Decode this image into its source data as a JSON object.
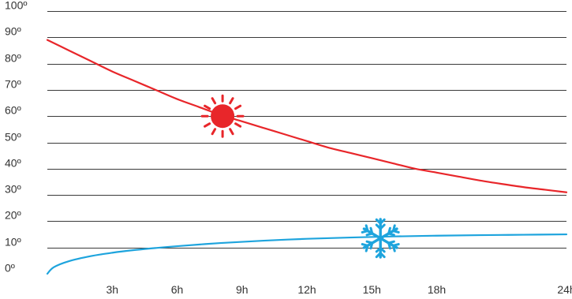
{
  "chart_data": {
    "type": "line",
    "title": "",
    "xlabel": "",
    "ylabel": "",
    "xlim": [
      0,
      24
    ],
    "ylim": [
      0,
      100
    ],
    "grid": true,
    "y_ticks": [
      {
        "value": 0,
        "label": "0º"
      },
      {
        "value": 10,
        "label": "10º"
      },
      {
        "value": 20,
        "label": "20º"
      },
      {
        "value": 30,
        "label": "30º"
      },
      {
        "value": 40,
        "label": "40º"
      },
      {
        "value": 50,
        "label": "50º"
      },
      {
        "value": 60,
        "label": "60º"
      },
      {
        "value": 70,
        "label": "70º"
      },
      {
        "value": 80,
        "label": "80º"
      },
      {
        "value": 90,
        "label": "90º"
      },
      {
        "value": 100,
        "label": "100º"
      }
    ],
    "x_ticks": [
      {
        "value": 3,
        "label": "3h"
      },
      {
        "value": 6,
        "label": "6h"
      },
      {
        "value": 9,
        "label": "9h"
      },
      {
        "value": 12,
        "label": "12h"
      },
      {
        "value": 15,
        "label": "15h"
      },
      {
        "value": 18,
        "label": "18h"
      },
      {
        "value": 24,
        "label": "24h"
      }
    ],
    "series": [
      {
        "color": "#e8262a",
        "icon": "sun-icon",
        "icon_at": {
          "x": 8.1,
          "y": 60
        },
        "points": [
          {
            "x": 0,
            "y": 89
          },
          {
            "x": 1,
            "y": 85
          },
          {
            "x": 2,
            "y": 81
          },
          {
            "x": 3,
            "y": 77
          },
          {
            "x": 4,
            "y": 73.5
          },
          {
            "x": 5,
            "y": 70
          },
          {
            "x": 6,
            "y": 66.5
          },
          {
            "x": 7,
            "y": 63.5
          },
          {
            "x": 8,
            "y": 60.5
          },
          {
            "x": 9,
            "y": 58
          },
          {
            "x": 10,
            "y": 55.5
          },
          {
            "x": 11,
            "y": 53
          },
          {
            "x": 12,
            "y": 50.5
          },
          {
            "x": 13,
            "y": 48
          },
          {
            "x": 14,
            "y": 46
          },
          {
            "x": 15,
            "y": 44
          },
          {
            "x": 16,
            "y": 42
          },
          {
            "x": 17,
            "y": 40
          },
          {
            "x": 18,
            "y": 38.5
          },
          {
            "x": 19,
            "y": 37
          },
          {
            "x": 20,
            "y": 35.5
          },
          {
            "x": 21,
            "y": 34.2
          },
          {
            "x": 22,
            "y": 33
          },
          {
            "x": 23,
            "y": 32
          },
          {
            "x": 24,
            "y": 31
          }
        ]
      },
      {
        "color": "#1ea4dd",
        "icon": "snowflake-icon",
        "icon_at": {
          "x": 15.4,
          "y": 13.5
        },
        "points": [
          {
            "x": 0,
            "y": 0
          },
          {
            "x": 0.3,
            "y": 2.5
          },
          {
            "x": 1,
            "y": 4.8
          },
          {
            "x": 2,
            "y": 6.7
          },
          {
            "x": 3,
            "y": 8
          },
          {
            "x": 4,
            "y": 9
          },
          {
            "x": 5,
            "y": 9.8
          },
          {
            "x": 6,
            "y": 10.5
          },
          {
            "x": 8,
            "y": 11.7
          },
          {
            "x": 10,
            "y": 12.6
          },
          {
            "x": 12,
            "y": 13.3
          },
          {
            "x": 14,
            "y": 13.8
          },
          {
            "x": 16,
            "y": 14.2
          },
          {
            "x": 18,
            "y": 14.5
          },
          {
            "x": 20,
            "y": 14.7
          },
          {
            "x": 22,
            "y": 14.85
          },
          {
            "x": 24,
            "y": 15
          }
        ]
      }
    ]
  }
}
